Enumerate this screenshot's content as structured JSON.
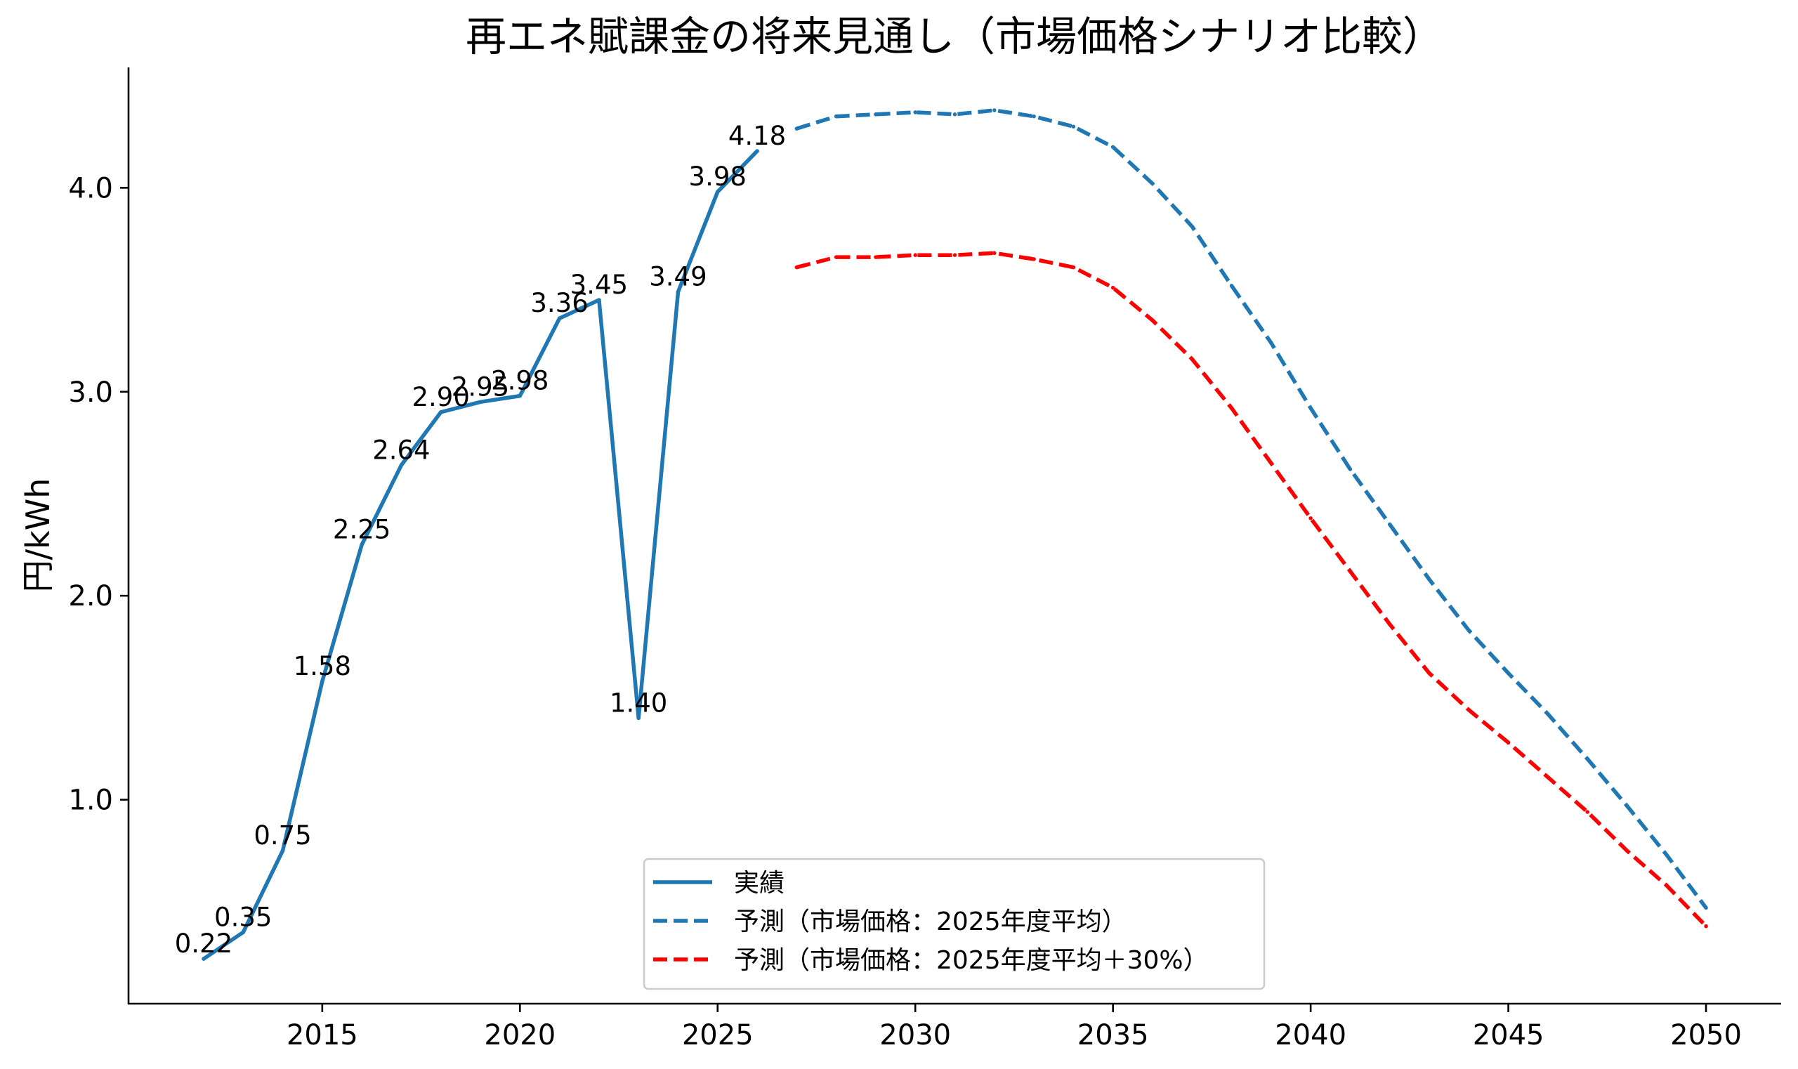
{
  "chart_data": {
    "type": "line",
    "title": "再エネ賦課金の将来見通し（市場価格シナリオ比較）",
    "xlabel": "",
    "ylabel": "円/kWh",
    "xlim": [
      2010.1,
      2051.9
    ],
    "ylim": [
      0.0,
      4.59
    ],
    "xticks": [
      2015,
      2020,
      2025,
      2030,
      2035,
      2040,
      2045,
      2050
    ],
    "xtick_labels": [
      "2015",
      "2020",
      "2025",
      "2030",
      "2035",
      "2040",
      "2045",
      "2050"
    ],
    "yticks": [
      1.0,
      2.0,
      3.0,
      4.0
    ],
    "ytick_labels": [
      "1.0",
      "2.0",
      "3.0",
      "4.0"
    ],
    "grid": false,
    "legend_position": "lower-center",
    "series": [
      {
        "name": "実績",
        "style": "solid",
        "color": "#1f77b4",
        "x": [
          2012,
          2013,
          2014,
          2015,
          2016,
          2017,
          2018,
          2019,
          2020,
          2021,
          2022,
          2023,
          2024,
          2025,
          2026
        ],
        "values": [
          0.22,
          0.35,
          0.75,
          1.58,
          2.25,
          2.64,
          2.9,
          2.95,
          2.98,
          3.36,
          3.45,
          1.4,
          3.49,
          3.98,
          4.18
        ],
        "data_labels": [
          "0.22",
          "0.35",
          "0.75",
          "1.58",
          "2.25",
          "2.64",
          "2.90",
          "2.95",
          "2.98",
          "3.36",
          "3.45",
          "1.40",
          "3.49",
          "3.98",
          "4.18"
        ]
      },
      {
        "name": "予測（市場価格：2025年度平均）",
        "style": "dashed",
        "color": "#1f77b4",
        "x": [
          2027,
          2028,
          2029,
          2030,
          2031,
          2032,
          2033,
          2034,
          2035,
          2036,
          2037,
          2038,
          2039,
          2040,
          2041,
          2042,
          2043,
          2044,
          2045,
          2046,
          2047,
          2048,
          2049,
          2050
        ],
        "values": [
          4.29,
          4.35,
          4.36,
          4.37,
          4.36,
          4.38,
          4.35,
          4.3,
          4.2,
          4.02,
          3.81,
          3.52,
          3.24,
          2.92,
          2.62,
          2.35,
          2.08,
          1.83,
          1.62,
          1.42,
          1.2,
          0.97,
          0.73,
          0.47
        ]
      },
      {
        "name": "予測（市場価格：2025年度平均＋30%）",
        "style": "dashed",
        "color": "#ff0000",
        "x": [
          2027,
          2028,
          2029,
          2030,
          2031,
          2032,
          2033,
          2034,
          2035,
          2036,
          2037,
          2038,
          2039,
          2040,
          2041,
          2042,
          2043,
          2044,
          2045,
          2046,
          2047,
          2048,
          2049,
          2050
        ],
        "values": [
          3.61,
          3.66,
          3.66,
          3.67,
          3.67,
          3.68,
          3.65,
          3.61,
          3.51,
          3.35,
          3.16,
          2.92,
          2.65,
          2.38,
          2.12,
          1.86,
          1.62,
          1.44,
          1.28,
          1.11,
          0.94,
          0.75,
          0.58,
          0.38
        ]
      }
    ]
  }
}
